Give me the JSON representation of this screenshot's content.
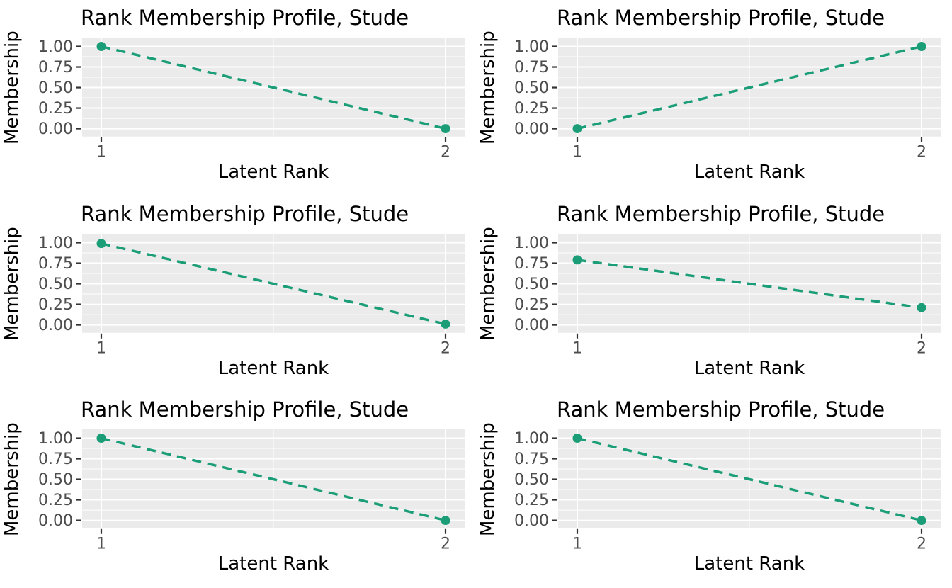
{
  "page": {
    "background": "#ffffff",
    "description": "Grid of six line charts of latent rank membership profiles"
  },
  "style": {
    "panel_bg": "#ebebeb",
    "grid_color": "#ffffff",
    "tick_label_color": "#4d4d4d",
    "tick_mark_color": "#333333",
    "title_color": "#000000",
    "accent_green": "#1b9e77"
  },
  "chart_data": [
    {
      "type": "line",
      "title": "Rank Membership Profile, Stude",
      "xlabel": "Latent Rank",
      "ylabel": "Membership",
      "x": [
        1,
        2
      ],
      "y": [
        1.0,
        0.0
      ],
      "xticks": [
        "1",
        "2"
      ],
      "yticks": [
        "0.00",
        "0.25",
        "0.50",
        "0.75",
        "1.00"
      ],
      "ytick_values": [
        0,
        0.25,
        0.5,
        0.75,
        1
      ],
      "xlim": [
        1,
        2
      ],
      "ylim": [
        0,
        1
      ],
      "line_color": "#1b9e77",
      "line_style": "dashed",
      "marker": "circle",
      "grid": "on",
      "legend": "none"
    },
    {
      "type": "line",
      "title": "Rank Membership Profile, Stude",
      "xlabel": "Latent Rank",
      "ylabel": "Membership",
      "x": [
        1,
        2
      ],
      "y": [
        0.0,
        1.0
      ],
      "xticks": [
        "1",
        "2"
      ],
      "yticks": [
        "0.00",
        "0.25",
        "0.50",
        "0.75",
        "1.00"
      ],
      "ytick_values": [
        0,
        0.25,
        0.5,
        0.75,
        1
      ],
      "xlim": [
        1,
        2
      ],
      "ylim": [
        0,
        1
      ],
      "line_color": "#1b9e77",
      "line_style": "dashed",
      "marker": "circle",
      "grid": "on",
      "legend": "none"
    },
    {
      "type": "line",
      "title": "Rank Membership Profile, Stude",
      "xlabel": "Latent Rank",
      "ylabel": "Membership",
      "x": [
        1,
        2
      ],
      "y": [
        0.99,
        0.01
      ],
      "xticks": [
        "1",
        "2"
      ],
      "yticks": [
        "0.00",
        "0.25",
        "0.50",
        "0.75",
        "1.00"
      ],
      "ytick_values": [
        0,
        0.25,
        0.5,
        0.75,
        1
      ],
      "xlim": [
        1,
        2
      ],
      "ylim": [
        0,
        1
      ],
      "line_color": "#1b9e77",
      "line_style": "dashed",
      "marker": "circle",
      "grid": "on",
      "legend": "none"
    },
    {
      "type": "line",
      "title": "Rank Membership Profile, Stude",
      "xlabel": "Latent Rank",
      "ylabel": "Membership",
      "x": [
        1,
        2
      ],
      "y": [
        0.79,
        0.21
      ],
      "xticks": [
        "1",
        "2"
      ],
      "yticks": [
        "0.00",
        "0.25",
        "0.50",
        "0.75",
        "1.00"
      ],
      "ytick_values": [
        0,
        0.25,
        0.5,
        0.75,
        1
      ],
      "xlim": [
        1,
        2
      ],
      "ylim": [
        0,
        1
      ],
      "line_color": "#1b9e77",
      "line_style": "dashed",
      "marker": "circle",
      "grid": "on",
      "legend": "none"
    },
    {
      "type": "line",
      "title": "Rank Membership Profile, Stude",
      "xlabel": "Latent Rank",
      "ylabel": "Membership",
      "x": [
        1,
        2
      ],
      "y": [
        1.0,
        0.0
      ],
      "xticks": [
        "1",
        "2"
      ],
      "yticks": [
        "0.00",
        "0.25",
        "0.50",
        "0.75",
        "1.00"
      ],
      "ytick_values": [
        0,
        0.25,
        0.5,
        0.75,
        1
      ],
      "xlim": [
        1,
        2
      ],
      "ylim": [
        0,
        1
      ],
      "line_color": "#1b9e77",
      "line_style": "dashed",
      "marker": "circle",
      "grid": "on",
      "legend": "none"
    },
    {
      "type": "line",
      "title": "Rank Membership Profile, Stude",
      "xlabel": "Latent Rank",
      "ylabel": "Membership",
      "x": [
        1,
        2
      ],
      "y": [
        1.0,
        0.0
      ],
      "xticks": [
        "1",
        "2"
      ],
      "yticks": [
        "0.00",
        "0.25",
        "0.50",
        "0.75",
        "1.00"
      ],
      "ytick_values": [
        0,
        0.25,
        0.5,
        0.75,
        1
      ],
      "xlim": [
        1,
        2
      ],
      "ylim": [
        0,
        1
      ],
      "line_color": "#1b9e77",
      "line_style": "dashed",
      "marker": "circle",
      "grid": "on",
      "legend": "none"
    }
  ]
}
